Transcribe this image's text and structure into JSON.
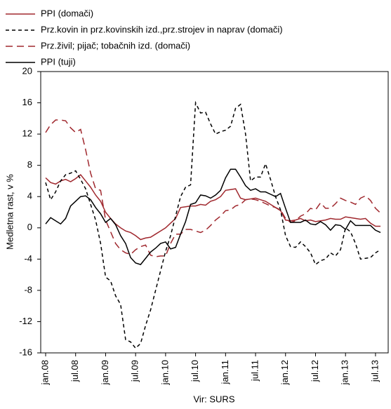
{
  "chart_data": {
    "type": "line",
    "y_label": "Medletna rast, v %",
    "x_label": "Vir: SURS",
    "categories": [
      "jan.08",
      null,
      null,
      null,
      null,
      null,
      "jul.08",
      null,
      null,
      null,
      null,
      null,
      "jan.09",
      null,
      null,
      null,
      null,
      null,
      "jul.09",
      null,
      null,
      null,
      null,
      null,
      "jan.10",
      null,
      null,
      null,
      null,
      null,
      "jul.10",
      null,
      null,
      null,
      null,
      null,
      "jan.11",
      null,
      null,
      null,
      null,
      null,
      "jul.11",
      null,
      null,
      null,
      null,
      null,
      "jan.12",
      null,
      null,
      null,
      null,
      null,
      "jul.12",
      null,
      null,
      null,
      null,
      null,
      "jan.13",
      null,
      null,
      null,
      null,
      null,
      "jul.13",
      null
    ],
    "ylim": [
      -16,
      20
    ],
    "yticks": [
      -16,
      -12,
      -8,
      -4,
      0,
      4,
      8,
      12,
      16,
      20
    ],
    "grid": false,
    "series": [
      {
        "name": "PPI (domači)",
        "color": "#a0282e",
        "dash": "solid",
        "values": [
          6.4,
          5.8,
          5.6,
          6.0,
          6.2,
          5.9,
          6.3,
          6.8,
          6.0,
          5.2,
          4.2,
          3.4,
          2.0,
          1.2,
          0.5,
          0,
          -0.4,
          -0.6,
          -1.0,
          -1.5,
          -1.3,
          -1.2,
          -0.8,
          -0.4,
          0,
          0.6,
          1.2,
          2.6,
          2.7,
          2.8,
          2.8,
          3.0,
          2.9,
          3.4,
          3.6,
          4.0,
          4.8,
          4.9,
          5.0,
          3.8,
          3.6,
          3.7,
          3.8,
          3.6,
          3.4,
          3.0,
          2.6,
          2.2,
          1.0,
          0.9,
          1.0,
          1.2,
          0.9,
          1.0,
          0.8,
          0.9,
          1.0,
          1.2,
          1.1,
          1.1,
          1.4,
          1.3,
          1.2,
          1.1,
          1.2,
          0.6,
          0.2,
          0.2
        ]
      },
      {
        "name": "Prz.kovin in prz.kovinskih izd.,prz.strojev in naprav (domači)",
        "color": "#000000",
        "dash": "dashed",
        "values": [
          5.8,
          3.6,
          4.6,
          6.0,
          6.8,
          7.0,
          7.3,
          6.2,
          5.0,
          3.0,
          1.0,
          -2,
          -6.3,
          -6.8,
          -8.7,
          -9.8,
          -14.3,
          -14.6,
          -15.4,
          -14.8,
          -12.5,
          -10.5,
          -8,
          -5.5,
          -3,
          -1,
          1.5,
          4,
          5.2,
          5.5,
          16.0,
          14.7,
          14.8,
          13.3,
          12.0,
          12.3,
          12.5,
          13.0,
          15.3,
          15.8,
          12,
          6.0,
          6.5,
          6.5,
          8.2,
          6.2,
          4.0,
          2.3,
          -1.0,
          -2.4,
          -2.5,
          -1.8,
          -2.4,
          -3.2,
          -4.7,
          -4.2,
          -4.0,
          -3.2,
          -3.6,
          -2.8,
          0,
          -0.5,
          -2.0,
          -4.0,
          -3.9,
          -3.8,
          -3.2,
          -2.8
        ]
      },
      {
        "name": "Prz.živil; pijač; tobačnih izd. (domači)",
        "color": "#a0282e",
        "dash": "longdash",
        "values": [
          12.2,
          13.2,
          13.8,
          13.8,
          13.7,
          12.8,
          12.2,
          12.6,
          10.0,
          7.0,
          5.0,
          4.8,
          1.0,
          -0.5,
          -2.0,
          -2.8,
          -3.2,
          -3.4,
          -2.8,
          -2.4,
          -2.2,
          -3.5,
          -3.7,
          -3.6,
          -3.6,
          -2.0,
          -0.8,
          -0.8,
          -0.2,
          -0.2,
          -0.4,
          -0.6,
          -0.3,
          0.3,
          1.0,
          1.5,
          2.2,
          2.3,
          2.8,
          3.0,
          3.6,
          3.7,
          3.6,
          3.4,
          3.1,
          2.8,
          2.6,
          2.3,
          1.2,
          0.7,
          0.9,
          1.5,
          1.8,
          2.5,
          2.3,
          3.2,
          2.5,
          2.5,
          3.1,
          3.8,
          3.5,
          3.3,
          3.0,
          3.8,
          4.1,
          3.5,
          2.5,
          1.9
        ]
      },
      {
        "name": "PPI (tuji)",
        "color": "#000000",
        "dash": "solid",
        "values": [
          0.5,
          1.3,
          0.9,
          0.5,
          1.2,
          2.8,
          3.4,
          4.0,
          4.1,
          3.6,
          2.6,
          1.8,
          0.7,
          1.2,
          0.4,
          -1.0,
          -2.0,
          -3.8,
          -4.5,
          -4.7,
          -3.9,
          -3.1,
          -2.6,
          -2.0,
          -1.8,
          -2.7,
          -2.5,
          -0.8,
          0.8,
          3.0,
          3.2,
          4.2,
          4.1,
          3.8,
          4.2,
          4.8,
          6.4,
          7.5,
          7.5,
          6.5,
          5.4,
          4.8,
          5.0,
          4.6,
          4.6,
          4.3,
          4.0,
          4.4,
          2.5,
          0.7,
          0.7,
          0.7,
          1.0,
          0.5,
          0.4,
          0.8,
          0.4,
          -0.3,
          0.4,
          0.3,
          -0.2,
          0.9,
          0.3,
          0.3,
          0.3,
          0.3,
          -0.3,
          -0.6
        ]
      }
    ]
  }
}
